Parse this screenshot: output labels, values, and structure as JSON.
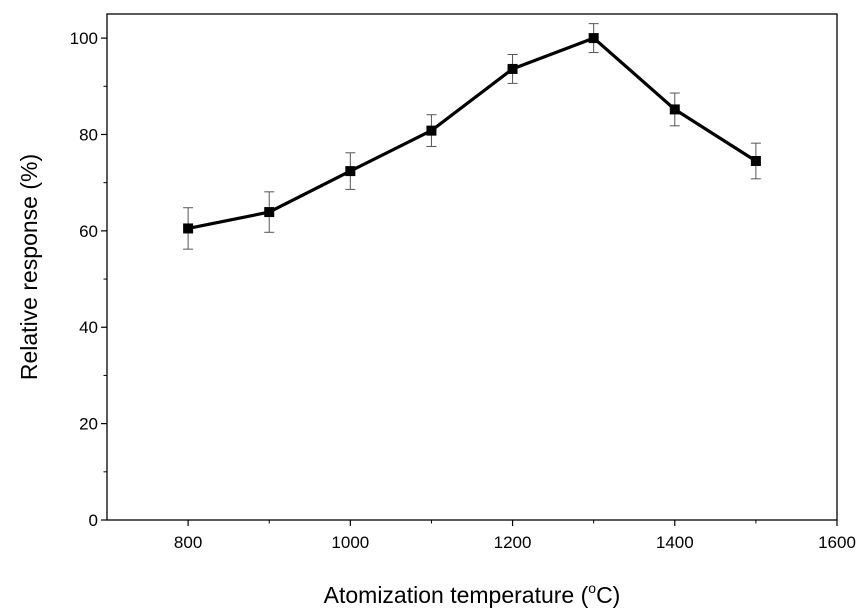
{
  "chart_data": {
    "type": "line",
    "xlabel": "Atomization temperature (",
    "xlabel_sup": "o",
    "xlabel_unit": "C)",
    "ylabel": "Relative response (%)",
    "xlim": [
      700,
      1600
    ],
    "ylim": [
      0,
      105
    ],
    "x_ticks": [
      800,
      1000,
      1200,
      1400,
      1600
    ],
    "y_ticks": [
      0,
      20,
      40,
      60,
      80,
      100
    ],
    "grid": false,
    "legend": "none",
    "series": [
      {
        "x": [
          800,
          900,
          1000,
          1100,
          1200,
          1300,
          1400,
          1500
        ],
        "y": [
          60.5,
          63.9,
          72.4,
          80.8,
          93.6,
          100.0,
          85.2,
          74.5
        ],
        "error": [
          4.3,
          4.2,
          3.8,
          3.3,
          3.0,
          3.0,
          3.4,
          3.7
        ],
        "marker": "square",
        "color": "#000000"
      }
    ]
  }
}
